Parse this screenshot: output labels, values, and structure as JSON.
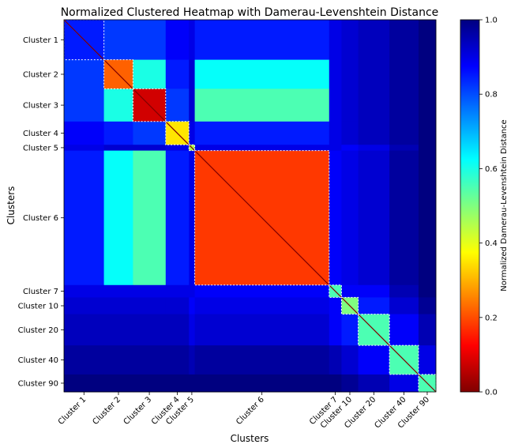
{
  "chart_data": {
    "type": "heatmap",
    "title": "Normalized Clustered Heatmap with Damerau-Levenshtein Distance",
    "xlabel": "Clusters",
    "ylabel": "Clusters",
    "colormap": "jet_r",
    "colorbar": {
      "label": "Normalized Damerau-Levenshtein Distance",
      "range": [
        0.0,
        1.0
      ],
      "ticks": [
        "0.0",
        "0.2",
        "0.4",
        "0.6",
        "0.8",
        "1.0"
      ]
    },
    "clusters": [
      {
        "label": "Cluster 1",
        "start": 0,
        "end": 55
      },
      {
        "label": "Cluster 2",
        "start": 55,
        "end": 95
      },
      {
        "label": "Cluster 3",
        "start": 95,
        "end": 140
      },
      {
        "label": "Cluster 4",
        "start": 140,
        "end": 172
      },
      {
        "label": "Cluster 5",
        "start": 172,
        "end": 180
      },
      {
        "label": "Cluster 6",
        "start": 180,
        "end": 365
      },
      {
        "label": "Cluster 7",
        "start": 365,
        "end": 382
      },
      {
        "label": "Cluster 10",
        "start": 382,
        "end": 405
      },
      {
        "label": "Cluster 20",
        "start": 405,
        "end": 448
      },
      {
        "label": "Cluster 40",
        "start": 448,
        "end": 488
      },
      {
        "label": "Cluster 90",
        "start": 488,
        "end": 512
      }
    ],
    "n_items": 512,
    "block_values": [
      [
        0.85,
        0.82,
        0.82,
        0.88,
        0.9,
        0.85,
        0.9,
        0.92,
        0.94,
        0.97,
        1.0
      ],
      [
        0.82,
        0.22,
        0.6,
        0.85,
        0.92,
        0.62,
        0.9,
        0.92,
        0.94,
        0.97,
        1.0
      ],
      [
        0.82,
        0.6,
        0.08,
        0.82,
        0.92,
        0.55,
        0.9,
        0.92,
        0.94,
        0.97,
        1.0
      ],
      [
        0.88,
        0.85,
        0.82,
        0.35,
        0.9,
        0.85,
        0.9,
        0.92,
        0.94,
        0.97,
        1.0
      ],
      [
        0.9,
        0.92,
        0.92,
        0.9,
        0.45,
        0.9,
        0.9,
        0.88,
        0.9,
        0.95,
        1.0
      ],
      [
        0.85,
        0.62,
        0.55,
        0.85,
        0.9,
        0.18,
        0.88,
        0.9,
        0.92,
        0.97,
        1.0
      ],
      [
        0.9,
        0.9,
        0.9,
        0.9,
        0.9,
        0.88,
        0.55,
        0.88,
        0.88,
        0.95,
        1.0
      ],
      [
        0.92,
        0.92,
        0.92,
        0.92,
        0.88,
        0.9,
        0.88,
        0.5,
        0.85,
        0.92,
        0.98
      ],
      [
        0.94,
        0.94,
        0.94,
        0.94,
        0.9,
        0.92,
        0.88,
        0.85,
        0.55,
        0.88,
        0.95
      ],
      [
        0.97,
        0.97,
        0.97,
        0.97,
        0.95,
        0.97,
        0.95,
        0.92,
        0.88,
        0.55,
        0.9
      ],
      [
        1.0,
        1.0,
        1.0,
        1.0,
        1.0,
        1.0,
        1.0,
        0.98,
        0.95,
        0.9,
        0.55
      ]
    ]
  }
}
